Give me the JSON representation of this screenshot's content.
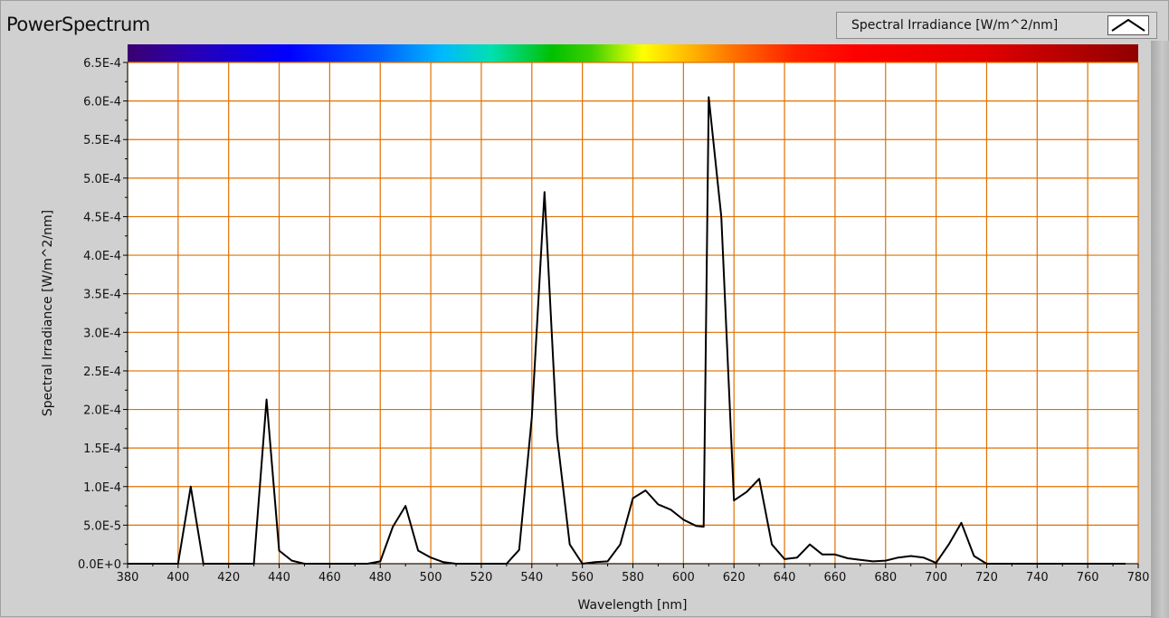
{
  "window": {
    "title": "PowerSpectrum"
  },
  "legend": {
    "label": "Spectral Irradiance [W/m^2/nm]"
  },
  "colors": {
    "grid": "#e07000",
    "plot_bg": "#ffffff",
    "line": "#000000"
  },
  "chart_data": {
    "type": "line",
    "title": "PowerSpectrum",
    "xlabel": "Wavelength [nm]",
    "ylabel": "Spectral Irradiance [W/m^2/nm]",
    "xlim": [
      380,
      780
    ],
    "ylim": [
      0,
      0.00065
    ],
    "x_ticks": [
      380,
      400,
      420,
      440,
      460,
      480,
      500,
      520,
      540,
      560,
      580,
      600,
      620,
      640,
      660,
      680,
      700,
      720,
      740,
      760,
      780
    ],
    "x_tick_labels": [
      "380",
      "400",
      "420",
      "440",
      "460",
      "480",
      "500",
      "520",
      "540",
      "560",
      "580",
      "600",
      "620",
      "640",
      "660",
      "680",
      "700",
      "720",
      "740",
      "760",
      "780"
    ],
    "y_ticks": [
      0,
      5e-05,
      0.0001,
      0.00015,
      0.0002,
      0.00025,
      0.0003,
      0.00035,
      0.0004,
      0.00045,
      0.0005,
      0.00055,
      0.0006,
      0.00065
    ],
    "y_tick_labels": [
      "0.0E+0",
      "5.0E-5",
      "1.0E-4",
      "1.5E-4",
      "2.0E-4",
      "2.5E-4",
      "3.0E-4",
      "3.5E-4",
      "4.0E-4",
      "4.5E-4",
      "5.0E-4",
      "5.5E-4",
      "6.0E-4",
      "6.5E-4"
    ],
    "grid": true,
    "legend_position": "top-right",
    "color_band": "visible-spectrum",
    "series": [
      {
        "name": "Spectral Irradiance [W/m^2/nm]",
        "x": [
          380,
          385,
          390,
          395,
          400,
          405,
          410,
          415,
          420,
          425,
          430,
          435,
          440,
          445,
          450,
          455,
          460,
          465,
          470,
          475,
          480,
          485,
          490,
          495,
          500,
          505,
          510,
          515,
          520,
          525,
          530,
          535,
          540,
          545,
          550,
          555,
          560,
          565,
          570,
          575,
          580,
          585,
          590,
          595,
          600,
          605,
          608,
          610,
          615,
          620,
          625,
          630,
          635,
          640,
          645,
          650,
          655,
          660,
          665,
          670,
          675,
          680,
          685,
          690,
          695,
          700,
          705,
          710,
          715,
          720,
          725,
          730,
          735,
          740,
          745,
          750,
          755,
          760,
          765,
          770,
          775
        ],
        "y": [
          0,
          0,
          0,
          0,
          0,
          0.0001,
          0,
          0,
          0,
          0,
          0,
          0.000213,
          1.7e-05,
          4e-06,
          0,
          0,
          0,
          0,
          0,
          0,
          3e-06,
          4.8e-05,
          7.5e-05,
          1.7e-05,
          8e-06,
          2e-06,
          0,
          0,
          0,
          0,
          0,
          1.8e-05,
          0.00019,
          0.000482,
          0.000165,
          2.5e-05,
          0,
          2e-06,
          3e-06,
          2.5e-05,
          8.5e-05,
          9.5e-05,
          7.7e-05,
          7e-05,
          5.7e-05,
          4.9e-05,
          4.8e-05,
          0.000605,
          0.00045,
          8.2e-05,
          9.3e-05,
          0.00011,
          2.5e-05,
          6e-06,
          8e-06,
          2.5e-05,
          1.2e-05,
          1.2e-05,
          7e-06,
          5e-06,
          3e-06,
          4e-06,
          8e-06,
          1e-05,
          8e-06,
          1e-06,
          2.5e-05,
          5.3e-05,
          1e-05,
          0,
          0,
          0,
          0,
          0,
          0,
          0,
          0,
          0,
          0,
          0,
          0
        ]
      }
    ]
  }
}
